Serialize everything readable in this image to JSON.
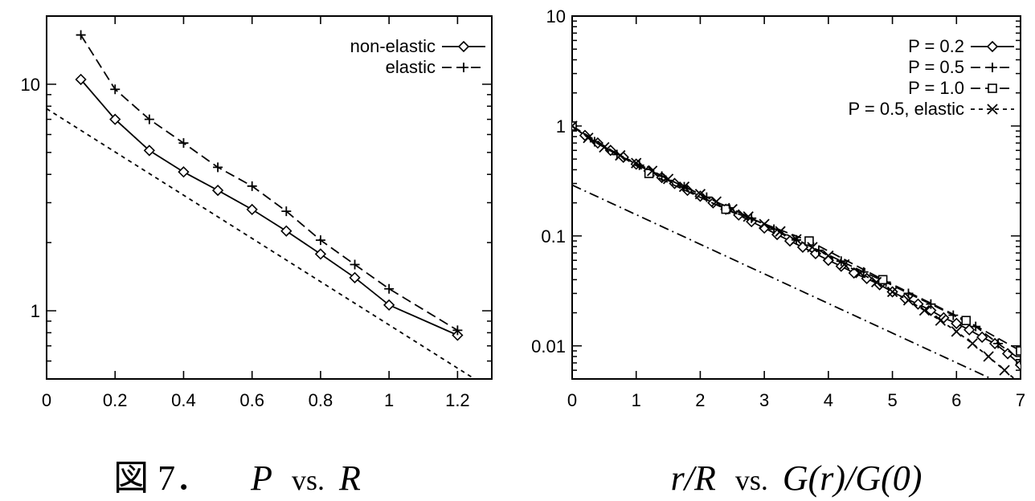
{
  "chart_data": [
    {
      "type": "line",
      "yscale": "log",
      "xlim": [
        0,
        1.3
      ],
      "ylim": [
        0.5,
        20
      ],
      "xticks": [
        0,
        0.2,
        0.4,
        0.6,
        0.8,
        1,
        1.2
      ],
      "xtick_labels": [
        "0",
        "0.2",
        "0.4",
        "0.6",
        "0.8",
        "1",
        "1.2"
      ],
      "yticks": [
        1,
        10
      ],
      "ytick_labels": [
        "1",
        "10"
      ],
      "legend_position": "top-right",
      "caption": {
        "label": "図 7．",
        "x_var": "P",
        "vs": "vs.",
        "y_var": "R"
      },
      "series": [
        {
          "name": "non-elastic",
          "marker": "diamond",
          "line": "solid",
          "x": [
            0.1,
            0.2,
            0.3,
            0.4,
            0.5,
            0.6,
            0.7,
            0.8,
            0.9,
            1.0,
            1.2
          ],
          "y": [
            10.5,
            7.0,
            5.1,
            4.1,
            3.4,
            2.8,
            2.25,
            1.78,
            1.4,
            1.06,
            0.78
          ]
        },
        {
          "name": "elastic",
          "marker": "plus",
          "line": "dashed",
          "x": [
            0.1,
            0.2,
            0.3,
            0.4,
            0.5,
            0.6,
            0.7,
            0.8,
            0.9,
            1.0,
            1.2
          ],
          "y": [
            16.5,
            9.5,
            7.0,
            5.5,
            4.3,
            3.55,
            2.75,
            2.05,
            1.6,
            1.25,
            0.82
          ]
        },
        {
          "name": "",
          "marker": "none",
          "line": "dotted",
          "x": [
            0,
            1.25
          ],
          "y": [
            7.8,
            0.5
          ]
        }
      ]
    },
    {
      "type": "line",
      "yscale": "log",
      "xlim": [
        0,
        7
      ],
      "ylim": [
        0.005,
        10
      ],
      "xticks": [
        0,
        1,
        2,
        3,
        4,
        5,
        6,
        7
      ],
      "xtick_labels": [
        "0",
        "1",
        "2",
        "3",
        "4",
        "5",
        "6",
        "7"
      ],
      "yticks": [
        0.01,
        0.1,
        1,
        10
      ],
      "ytick_labels": [
        "0.01",
        "0.1",
        "1",
        "10"
      ],
      "legend_position": "top-right",
      "caption": {
        "x_var": "r/R",
        "vs": "vs.",
        "y_var": "G(r)/G(0)"
      },
      "series": [
        {
          "name": "P = 0.2",
          "marker": "diamond",
          "line": "solid",
          "x": [
            0,
            0.2,
            0.4,
            0.6,
            0.8,
            1.0,
            1.2,
            1.4,
            1.6,
            1.8,
            2.0,
            2.2,
            2.4,
            2.6,
            2.8,
            3.0,
            3.2,
            3.4,
            3.6,
            3.8,
            4.0,
            4.2,
            4.4,
            4.6,
            4.8,
            5.0,
            5.2,
            5.4,
            5.6,
            5.8,
            6.0,
            6.2,
            6.4,
            6.6,
            6.8,
            7.0
          ],
          "y": [
            1.0,
            0.82,
            0.7,
            0.6,
            0.52,
            0.45,
            0.39,
            0.34,
            0.3,
            0.26,
            0.23,
            0.2,
            0.175,
            0.155,
            0.135,
            0.118,
            0.103,
            0.09,
            0.079,
            0.069,
            0.06,
            0.053,
            0.046,
            0.041,
            0.036,
            0.031,
            0.027,
            0.024,
            0.021,
            0.018,
            0.016,
            0.014,
            0.012,
            0.0105,
            0.0085,
            0.0067
          ]
        },
        {
          "name": "P = 0.5",
          "marker": "plus",
          "line": "dashed",
          "x": [
            0,
            0.35,
            0.7,
            1.05,
            1.4,
            1.75,
            2.1,
            2.45,
            2.8,
            3.15,
            3.5,
            3.85,
            4.2,
            4.55,
            4.9,
            5.25,
            5.6,
            5.95,
            6.3,
            6.65,
            7.0
          ],
          "y": [
            1.0,
            0.72,
            0.55,
            0.44,
            0.35,
            0.28,
            0.225,
            0.18,
            0.145,
            0.115,
            0.092,
            0.074,
            0.059,
            0.047,
            0.038,
            0.03,
            0.024,
            0.019,
            0.015,
            0.0105,
            0.0075
          ]
        },
        {
          "name": "P = 1.0",
          "marker": "square",
          "line": "dashed",
          "x": [
            0,
            1.2,
            2.4,
            3.7,
            4.85,
            6.15,
            7.0
          ],
          "y": [
            1.0,
            0.37,
            0.175,
            0.09,
            0.04,
            0.017,
            0.009
          ]
        },
        {
          "name": "P = 0.5, elastic",
          "marker": "cross",
          "line": "dotted",
          "x": [
            0,
            0.25,
            0.5,
            0.75,
            1.0,
            1.25,
            1.5,
            1.75,
            2.0,
            2.25,
            2.5,
            2.75,
            3.0,
            3.25,
            3.5,
            3.75,
            4.0,
            4.25,
            4.5,
            4.75,
            5.0,
            5.25,
            5.5,
            5.75,
            6.0,
            6.25,
            6.5,
            6.75,
            7.0
          ],
          "y": [
            1.0,
            0.78,
            0.64,
            0.54,
            0.46,
            0.39,
            0.33,
            0.28,
            0.24,
            0.205,
            0.175,
            0.15,
            0.128,
            0.11,
            0.093,
            0.079,
            0.066,
            0.055,
            0.046,
            0.038,
            0.031,
            0.026,
            0.021,
            0.017,
            0.0135,
            0.0105,
            0.008,
            0.006,
            0.0045
          ]
        },
        {
          "name": "",
          "marker": "none",
          "line": "dashdot",
          "x": [
            0,
            6.55
          ],
          "y": [
            0.29,
            0.005
          ]
        }
      ]
    }
  ]
}
